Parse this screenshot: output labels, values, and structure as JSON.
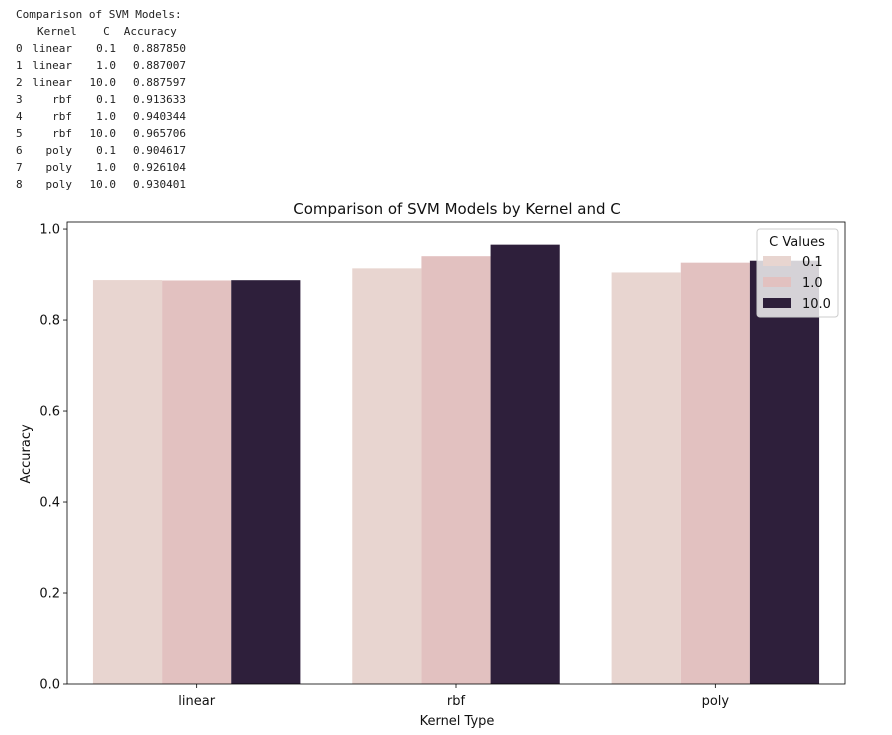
{
  "console": {
    "heading": "Comparison of SVM Models:",
    "columns": [
      "Kernel",
      "C",
      "Accuracy"
    ],
    "rows": [
      {
        "index": "0",
        "kernel": "linear",
        "c": "0.1",
        "accuracy": "0.887850"
      },
      {
        "index": "1",
        "kernel": "linear",
        "c": "1.0",
        "accuracy": "0.887007"
      },
      {
        "index": "2",
        "kernel": "linear",
        "c": "10.0",
        "accuracy": "0.887597"
      },
      {
        "index": "3",
        "kernel": "rbf",
        "c": "0.1",
        "accuracy": "0.913633"
      },
      {
        "index": "4",
        "kernel": "rbf",
        "c": "1.0",
        "accuracy": "0.940344"
      },
      {
        "index": "5",
        "kernel": "rbf",
        "c": "10.0",
        "accuracy": "0.965706"
      },
      {
        "index": "6",
        "kernel": "poly",
        "c": "0.1",
        "accuracy": "0.904617"
      },
      {
        "index": "7",
        "kernel": "poly",
        "c": "1.0",
        "accuracy": "0.926104"
      },
      {
        "index": "8",
        "kernel": "poly",
        "c": "10.0",
        "accuracy": "0.930401"
      }
    ]
  },
  "chart_data": {
    "type": "bar",
    "title": "Comparison of SVM Models by Kernel and C",
    "xlabel": "Kernel Type",
    "ylabel": "Accuracy",
    "categories": [
      "linear",
      "rbf",
      "poly"
    ],
    "series": [
      {
        "name": "0.1",
        "color": "#e8d5d0",
        "values": [
          0.88785,
          0.913633,
          0.904617
        ]
      },
      {
        "name": "1.0",
        "color": "#e2c1c0",
        "values": [
          0.887007,
          0.940344,
          0.926104
        ]
      },
      {
        "name": "10.0",
        "color": "#2e1f3b",
        "values": [
          0.887597,
          0.965706,
          0.930401
        ]
      }
    ],
    "ylim": [
      0,
      1.0
    ],
    "yticks": [
      "0.0",
      "0.2",
      "0.4",
      "0.6",
      "0.8",
      "1.0"
    ],
    "legend": {
      "title": "C Values",
      "placement": "top-right"
    },
    "grid": false
  }
}
